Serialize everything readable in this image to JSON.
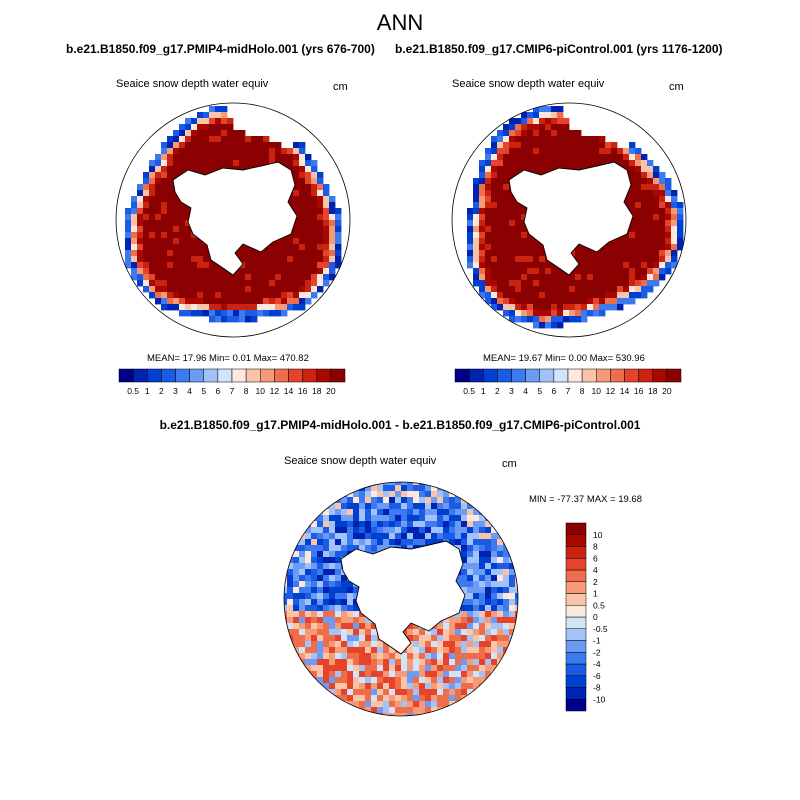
{
  "page_title": "ANN",
  "panels": [
    {
      "case_title": "b.e21.B1850.f09_g17.PMIP4-midHolo.001 (yrs 676-700)",
      "variable": "Seaice snow depth water equiv",
      "units": "cm",
      "stats": "MEAN=  17.96  Min=    0.01  Max= 470.82"
    },
    {
      "case_title": "b.e21.B1850.f09_g17.CMIP6-piControl.001 (yrs 1176-1200)",
      "variable": "Seaice snow depth water equiv",
      "units": "cm",
      "stats": "MEAN=  19.67  Min=    0.00  Max= 530.96"
    },
    {
      "case_title": "b.e21.B1850.f09_g17.PMIP4-midHolo.001 - b.e21.B1850.f09_g17.CMIP6-piControl.001",
      "variable": "Seaice snow depth water equiv",
      "units": "cm",
      "stats": "MIN = -77.37 MAX =  19.68"
    }
  ],
  "chart_data": [
    {
      "type": "heatmap",
      "projection": "south-polar-stereographic",
      "title": "b.e21.B1850.f09_g17.PMIP4-midHolo.001 (yrs 676-700)",
      "field": "Seaice snow depth water equiv",
      "units": "cm",
      "summary": {
        "mean": 17.96,
        "min": 0.01,
        "max": 470.82
      },
      "colorbar": {
        "orientation": "horizontal",
        "levels": [
          "0.5",
          "1",
          "2",
          "3",
          "4",
          "5",
          "6",
          "7",
          "8",
          "10",
          "12",
          "14",
          "16",
          "18",
          "20"
        ],
        "colors": [
          "#00008B",
          "#0022B0",
          "#0040D0",
          "#1A5CE6",
          "#3D7AF0",
          "#6B9BF5",
          "#A3C2F7",
          "#D2E4FA",
          "#FDE9DC",
          "#FAC4A8",
          "#F59B78",
          "#EE6E4C",
          "#E5442A",
          "#CC2210",
          "#A80800",
          "#8B0000"
        ]
      }
    },
    {
      "type": "heatmap",
      "projection": "south-polar-stereographic",
      "title": "b.e21.B1850.f09_g17.CMIP6-piControl.001 (yrs 1176-1200)",
      "field": "Seaice snow depth water equiv",
      "units": "cm",
      "summary": {
        "mean": 19.67,
        "min": 0.0,
        "max": 530.96
      },
      "colorbar": {
        "orientation": "horizontal",
        "levels": [
          "0.5",
          "1",
          "2",
          "3",
          "4",
          "5",
          "6",
          "7",
          "8",
          "10",
          "12",
          "14",
          "16",
          "18",
          "20"
        ],
        "colors": [
          "#00008B",
          "#0022B0",
          "#0040D0",
          "#1A5CE6",
          "#3D7AF0",
          "#6B9BF5",
          "#A3C2F7",
          "#D2E4FA",
          "#FDE9DC",
          "#FAC4A8",
          "#F59B78",
          "#EE6E4C",
          "#E5442A",
          "#CC2210",
          "#A80800",
          "#8B0000"
        ]
      }
    },
    {
      "type": "heatmap",
      "projection": "south-polar-stereographic",
      "title": "b.e21.B1850.f09_g17.PMIP4-midHolo.001 - b.e21.B1850.f09_g17.CMIP6-piControl.001",
      "field": "Seaice snow depth water equiv",
      "units": "cm",
      "summary": {
        "min": -77.37,
        "max": 19.68
      },
      "colorbar": {
        "orientation": "vertical",
        "levels": [
          "-10",
          "-8",
          "-6",
          "-4",
          "-2",
          "-1",
          "-0.5",
          "0",
          "0.5",
          "1",
          "2",
          "4",
          "6",
          "8",
          "10"
        ],
        "colors": [
          "#00008B",
          "#0022B0",
          "#0040D0",
          "#1A5CE6",
          "#3D7AF0",
          "#6B9BF5",
          "#A3C2F7",
          "#D2E4FA",
          "#FDE9DC",
          "#FAC4A8",
          "#F59B78",
          "#EE6E4C",
          "#E5442A",
          "#CC2210",
          "#A80800",
          "#8B0000"
        ]
      }
    }
  ]
}
